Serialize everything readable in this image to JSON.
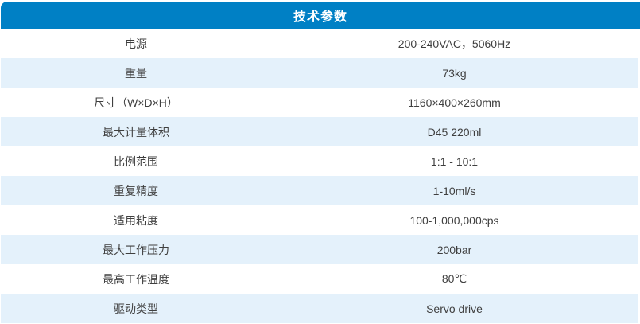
{
  "colors": {
    "header_bg": "#0080c5",
    "alt_row_bg": "#e4f1fb",
    "row_bg": "#ffffff",
    "text_color": "#3f3f3f",
    "header_text": "#ffffff"
  },
  "table": {
    "title": "技术参数",
    "rows": [
      {
        "label": "电源",
        "value": "200-240VAC，5060Hz"
      },
      {
        "label": "重量",
        "value": "73kg"
      },
      {
        "label": "尺寸（W×D×H）",
        "value": "1160×400×260mm"
      },
      {
        "label": "最大计量体积",
        "value": "D45 220ml"
      },
      {
        "label": "比例范围",
        "value": "1:1 - 10:1"
      },
      {
        "label": "重复精度",
        "value": "1-10ml/s"
      },
      {
        "label": "适用粘度",
        "value": "100-1,000,000cps"
      },
      {
        "label": "最大工作压力",
        "value": "200bar"
      },
      {
        "label": "最高工作温度",
        "value": "80℃"
      },
      {
        "label": "驱动类型",
        "value": "Servo drive"
      }
    ]
  }
}
